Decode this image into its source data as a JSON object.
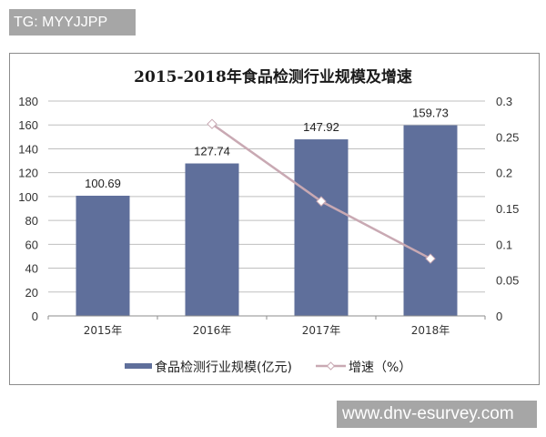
{
  "watermark_top": "TG: MYYJJPP",
  "watermark_bottom": "www.dnv-esurvey.com",
  "chart_data": {
    "type": "bar",
    "title": "2015-2018年食品检测行业规模及增速",
    "categories": [
      "2015年",
      "2016年",
      "2017年",
      "2018年"
    ],
    "series": [
      {
        "name": "食品检测行业规模(亿元)",
        "type": "bar",
        "axis": "left",
        "color": "#5f6f9b",
        "values": [
          100.69,
          127.74,
          147.92,
          159.73
        ],
        "labels": [
          "100.69",
          "127.74",
          "147.92",
          "159.73"
        ]
      },
      {
        "name": "增速（%）",
        "type": "line",
        "axis": "right",
        "color": "#c9a9b3",
        "values": [
          null,
          0.268,
          0.16,
          0.08
        ]
      }
    ],
    "left_axis": {
      "ylim": [
        0,
        180
      ],
      "ticks": [
        "0",
        "20",
        "40",
        "60",
        "80",
        "100",
        "120",
        "140",
        "160",
        "180"
      ]
    },
    "right_axis": {
      "ylim": [
        0,
        0.3
      ],
      "ticks": [
        "0",
        "0.05",
        "0.1",
        "0.15",
        "0.2",
        "0.25",
        "0.3"
      ]
    },
    "grid": true,
    "legend_position": "bottom",
    "xlabel": "",
    "ylabel": ""
  },
  "legend": {
    "bar_label": "食品检测行业规模(亿元)",
    "line_label": "增速（%）"
  }
}
